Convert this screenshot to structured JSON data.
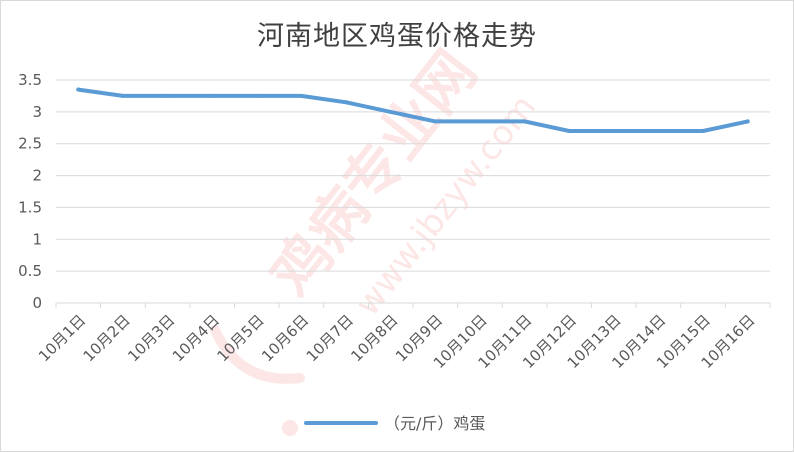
{
  "chart_data": {
    "type": "line",
    "title": "河南地区鸡蛋价格走势",
    "categories": [
      "10月1日",
      "10月2日",
      "10月3日",
      "10月4日",
      "10月5日",
      "10月6日",
      "10月7日",
      "10月8日",
      "10月9日",
      "10月10日",
      "10月11日",
      "10月12日",
      "10月13日",
      "10月14日",
      "10月15日",
      "10月16日"
    ],
    "series": [
      {
        "name": "（元/斤）鸡蛋",
        "color": "#5b9bd5",
        "values": [
          3.35,
          3.25,
          3.25,
          3.25,
          3.25,
          3.25,
          3.15,
          3.0,
          2.85,
          2.85,
          2.85,
          2.7,
          2.7,
          2.7,
          2.7,
          2.85
        ]
      }
    ],
    "ylim": [
      0,
      3.5
    ],
    "yticks": [
      "0",
      "0.5",
      "1",
      "1.5",
      "2",
      "2.5",
      "3",
      "3.5"
    ],
    "grid": true,
    "legend": "bottom",
    "gridColor": "#d9d9d9",
    "watermark": {
      "brand": "鸡病专业网",
      "url": "www.jbzyw.com",
      "color": "#e8423f"
    }
  }
}
